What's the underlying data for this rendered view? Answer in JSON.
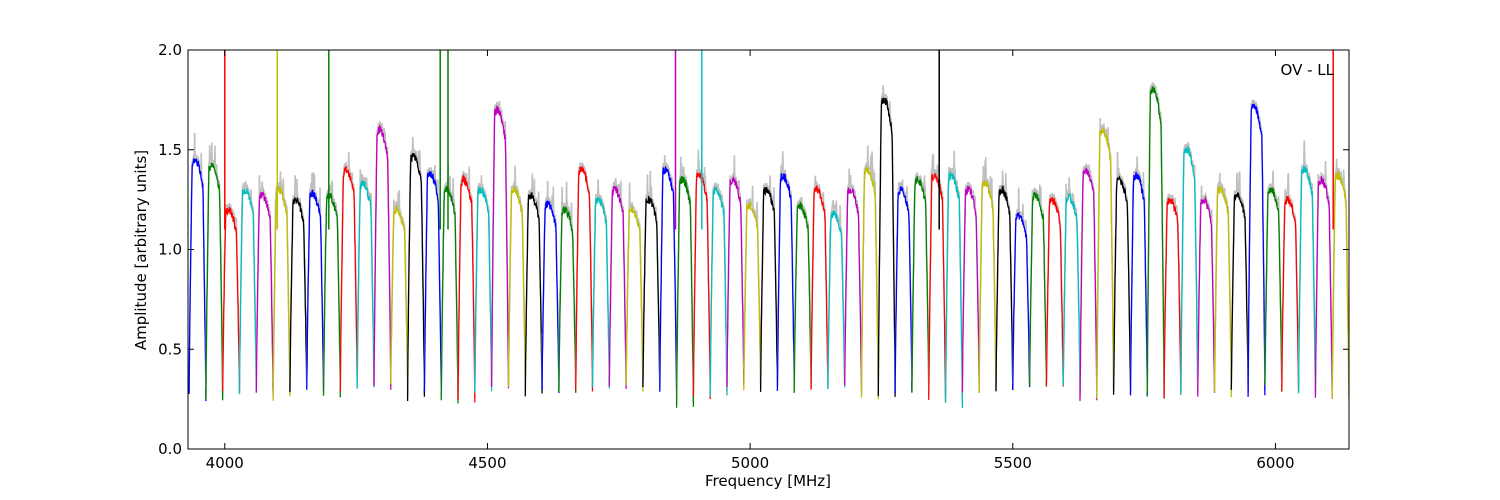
{
  "chart_data": {
    "type": "line",
    "xlabel": "Frequency [MHz]",
    "ylabel": "Amplitude [arbitrary units]",
    "xlim": [
      3930,
      6140
    ],
    "ylim": [
      0.0,
      2.0
    ],
    "xticks": [
      4000,
      4500,
      5000,
      5500,
      6000
    ],
    "yticks": [
      0.0,
      0.5,
      1.0,
      1.5,
      2.0
    ],
    "xtick_labels": [
      "4000",
      "4500",
      "5000",
      "5500",
      "6000"
    ],
    "ytick_labels": [
      "0.0",
      "0.5",
      "1.0",
      "1.5",
      "2.0"
    ],
    "annotation": "OV - LL",
    "grid": false,
    "reference_color": "#c0c0c0",
    "series_colors": [
      "#0000ff",
      "#008000",
      "#ff0000",
      "#00bfbf",
      "#bf00bf",
      "#bfbf00",
      "#000000"
    ],
    "channel_width_mhz": 32,
    "channel_starts_mhz": [
      3932,
      3964,
      3996,
      4028,
      4060,
      4092,
      4124,
      4156,
      4188,
      4220,
      4252,
      4284,
      4316,
      4348,
      4380,
      4412,
      4444,
      4476,
      4508,
      4540,
      4572,
      4604,
      4636,
      4668,
      4700,
      4732,
      4764,
      4796,
      4828,
      4860,
      4892,
      4924,
      4956,
      4988,
      5020,
      5052,
      5084,
      5116,
      5148,
      5180,
      5212,
      5244,
      5276,
      5308,
      5340,
      5372,
      5404,
      5436,
      5468,
      5500,
      5532,
      5564,
      5596,
      5628,
      5660,
      5692,
      5724,
      5756,
      5788,
      5820,
      5852,
      5884,
      5916,
      5948,
      5980,
      6012,
      6044,
      6076,
      6108
    ],
    "channel_peaks": [
      1.45,
      1.42,
      1.2,
      1.3,
      1.27,
      1.3,
      1.25,
      1.28,
      1.27,
      1.4,
      1.33,
      1.6,
      1.2,
      1.47,
      1.38,
      1.3,
      1.35,
      1.3,
      1.7,
      1.3,
      1.27,
      1.23,
      1.2,
      1.4,
      1.25,
      1.3,
      1.2,
      1.25,
      1.4,
      1.35,
      1.37,
      1.3,
      1.35,
      1.22,
      1.3,
      1.37,
      1.22,
      1.3,
      1.18,
      1.3,
      1.4,
      1.75,
      1.3,
      1.35,
      1.37,
      1.37,
      1.3,
      1.33,
      1.3,
      1.17,
      1.27,
      1.25,
      1.26,
      1.4,
      1.6,
      1.35,
      1.37,
      1.8,
      1.25,
      1.5,
      1.25,
      1.3,
      1.27,
      1.72,
      1.3,
      1.25,
      1.4,
      1.35,
      1.37
    ],
    "channel_minima": [
      0.26,
      0.25,
      0.3,
      0.28,
      0.28,
      0.25,
      0.3,
      0.28,
      0.26,
      0.3,
      0.32,
      0.3,
      0.33,
      0.26,
      0.28,
      0.23,
      0.25,
      0.28,
      0.3,
      0.3,
      0.28,
      0.3,
      0.3,
      0.3,
      0.3,
      0.3,
      0.3,
      0.3,
      0.28,
      0.22,
      0.25,
      0.25,
      0.3,
      0.3,
      0.3,
      0.3,
      0.3,
      0.3,
      0.3,
      0.3,
      0.25,
      0.25,
      0.3,
      0.3,
      0.23,
      0.22,
      0.3,
      0.3,
      0.3,
      0.3,
      0.3,
      0.3,
      0.3,
      0.25,
      0.27,
      0.27,
      0.27,
      0.27,
      0.27,
      0.27,
      0.27,
      0.27,
      0.28,
      0.28,
      0.3,
      0.3,
      0.27,
      0.25,
      0.24
    ],
    "spikes": [
      {
        "x": 4000,
        "y": 2.0,
        "color": "#ff0000"
      },
      {
        "x": 4100,
        "y": 2.0,
        "color": "#bfbf00"
      },
      {
        "x": 4198,
        "y": 2.0,
        "color": "#008000"
      },
      {
        "x": 4410,
        "y": 2.0,
        "color": "#008000"
      },
      {
        "x": 4425,
        "y": 2.0,
        "color": "#008000"
      },
      {
        "x": 4858,
        "y": 2.0,
        "color": "#bf00bf"
      },
      {
        "x": 4908,
        "y": 2.0,
        "color": "#00bfbf"
      },
      {
        "x": 5360,
        "y": 2.0,
        "color": "#000000"
      },
      {
        "x": 6110,
        "y": 2.0,
        "color": "#ff0000"
      }
    ]
  }
}
